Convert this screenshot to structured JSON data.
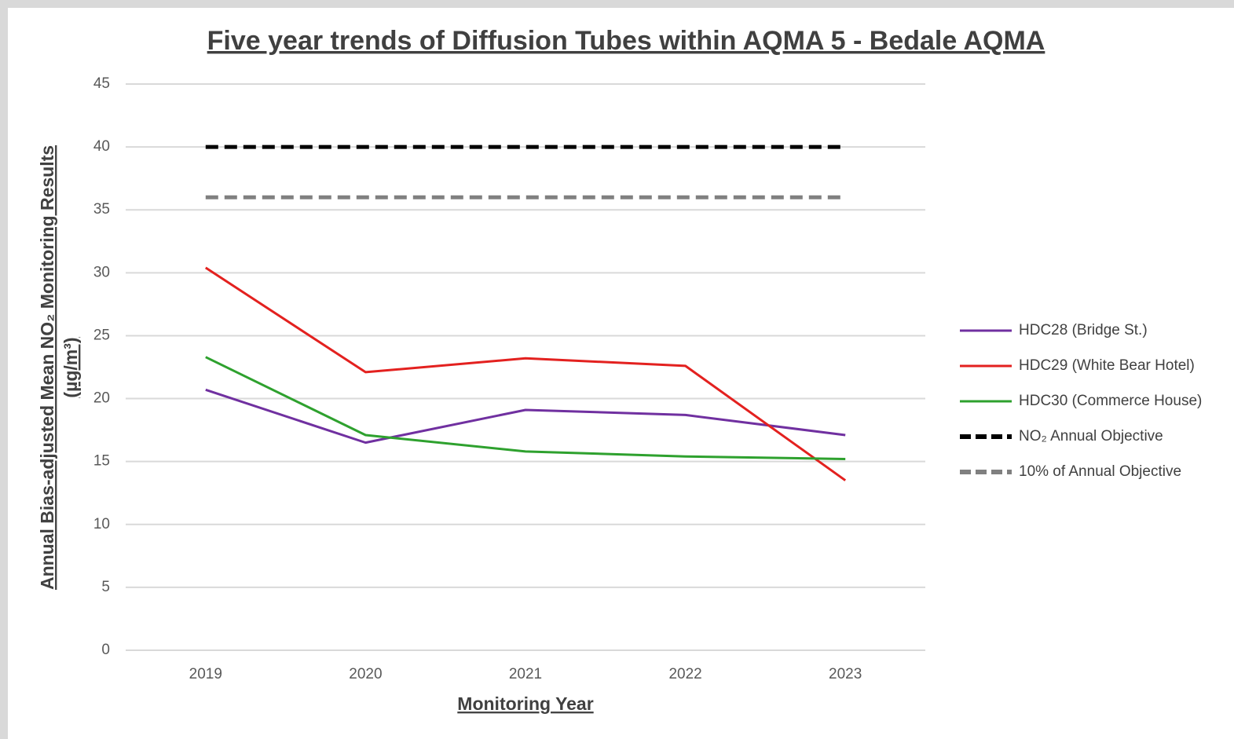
{
  "chart_data": {
    "type": "line",
    "title": "Five year trends of Diffusion Tubes within AQMA 5 - Bedale AQMA",
    "x_label": "Monitoring Year",
    "y_label": [
      "Annual Bias-adjusted Mean NO₂ Monitoring Results",
      "(µg/m³)"
    ],
    "categories": [
      "2019",
      "2020",
      "2021",
      "2022",
      "2023"
    ],
    "ylim": [
      0,
      45
    ],
    "yticks": [
      0,
      5,
      10,
      15,
      20,
      25,
      30,
      35,
      40,
      45
    ],
    "grid": true,
    "legend": "right",
    "series": [
      {
        "name": "HDC28 (Bridge St.)",
        "color": "#7030a0",
        "style": "solid",
        "values": [
          20.7,
          16.5,
          19.1,
          18.7,
          17.1
        ]
      },
      {
        "name": "HDC29 (White Bear Hotel)",
        "color": "#e3211f",
        "style": "solid",
        "values": [
          30.4,
          22.1,
          23.2,
          22.6,
          13.5
        ]
      },
      {
        "name": "HDC30 (Commerce House)",
        "color": "#2ea12e",
        "style": "solid",
        "values": [
          23.3,
          17.1,
          15.8,
          15.4,
          15.2
        ]
      },
      {
        "name": "NO₂ Annual Objective",
        "color": "#000000",
        "style": "dashed",
        "values": [
          40,
          40,
          40,
          40,
          40
        ]
      },
      {
        "name": "10% of Annual Objective",
        "color": "#808080",
        "style": "dashed",
        "values": [
          36,
          36,
          36,
          36,
          36
        ]
      }
    ]
  }
}
